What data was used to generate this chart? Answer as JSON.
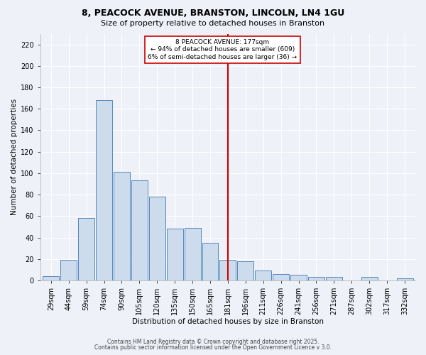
{
  "title1": "8, PEACOCK AVENUE, BRANSTON, LINCOLN, LN4 1GU",
  "title2": "Size of property relative to detached houses in Branston",
  "xlabel": "Distribution of detached houses by size in Branston",
  "ylabel": "Number of detached properties",
  "bin_labels": [
    "29sqm",
    "44sqm",
    "59sqm",
    "74sqm",
    "90sqm",
    "105sqm",
    "120sqm",
    "135sqm",
    "150sqm",
    "165sqm",
    "181sqm",
    "196sqm",
    "211sqm",
    "226sqm",
    "241sqm",
    "256sqm",
    "271sqm",
    "287sqm",
    "302sqm",
    "317sqm",
    "332sqm"
  ],
  "bar_heights": [
    4,
    19,
    58,
    168,
    101,
    93,
    78,
    48,
    49,
    35,
    19,
    18,
    9,
    6,
    5,
    3,
    3,
    0,
    3,
    0,
    2
  ],
  "bar_color": "#ccdcec",
  "bar_edge_color": "#5588bb",
  "vline_index": 10,
  "vline_color": "#cc0000",
  "annotation_text": "8 PEACOCK AVENUE: 177sqm\n← 94% of detached houses are smaller (609)\n6% of semi-detached houses are larger (36) →",
  "annotation_box_color": "#ffffff",
  "annotation_box_edge": "#cc0000",
  "footer1": "Contains HM Land Registry data © Crown copyright and database right 2025.",
  "footer2": "Contains public sector information licensed under the Open Government Licence v 3.0.",
  "bg_color": "#eef2f8",
  "grid_color": "#ffffff",
  "ylim": [
    0,
    230
  ],
  "yticks": [
    0,
    20,
    40,
    60,
    80,
    100,
    120,
    140,
    160,
    180,
    200,
    220
  ],
  "title1_fontsize": 9,
  "title2_fontsize": 8,
  "axis_fontsize": 7.5,
  "tick_fontsize": 7,
  "footer_fontsize": 5.5
}
